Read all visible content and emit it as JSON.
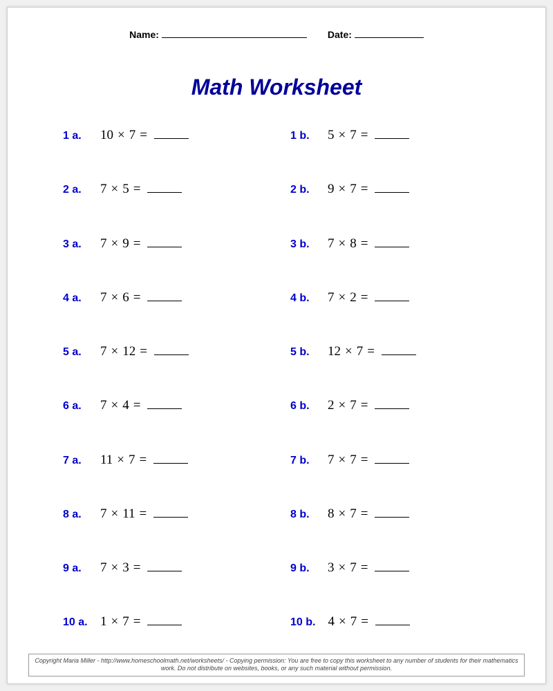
{
  "header": {
    "name_label": "Name:",
    "date_label": "Date:"
  },
  "title": "Math Worksheet",
  "colors": {
    "title_color": "#000099",
    "label_color": "#0000cc",
    "text_color": "#000000",
    "page_bg": "#ffffff"
  },
  "typography": {
    "title_fontsize": 32,
    "label_fontsize": 16,
    "expr_fontsize": 19,
    "footer_fontsize": 9
  },
  "operator": "×",
  "equals": "=",
  "problems": [
    {
      "label": "1 a.",
      "a": 10,
      "b": 7
    },
    {
      "label": "1 b.",
      "a": 5,
      "b": 7
    },
    {
      "label": "2 a.",
      "a": 7,
      "b": 5
    },
    {
      "label": "2 b.",
      "a": 9,
      "b": 7
    },
    {
      "label": "3 a.",
      "a": 7,
      "b": 9
    },
    {
      "label": "3 b.",
      "a": 7,
      "b": 8
    },
    {
      "label": "4 a.",
      "a": 7,
      "b": 6
    },
    {
      "label": "4 b.",
      "a": 7,
      "b": 2
    },
    {
      "label": "5 a.",
      "a": 7,
      "b": 12
    },
    {
      "label": "5 b.",
      "a": 12,
      "b": 7
    },
    {
      "label": "6 a.",
      "a": 7,
      "b": 4
    },
    {
      "label": "6 b.",
      "a": 2,
      "b": 7
    },
    {
      "label": "7 a.",
      "a": 11,
      "b": 7
    },
    {
      "label": "7 b.",
      "a": 7,
      "b": 7
    },
    {
      "label": "8 a.",
      "a": 7,
      "b": 11
    },
    {
      "label": "8 b.",
      "a": 8,
      "b": 7
    },
    {
      "label": "9 a.",
      "a": 7,
      "b": 3
    },
    {
      "label": "9 b.",
      "a": 3,
      "b": 7
    },
    {
      "label": "10 a.",
      "a": 1,
      "b": 7
    },
    {
      "label": "10 b.",
      "a": 4,
      "b": 7
    }
  ],
  "footer": "Copyright Maria Miller - http://www.homeschoolmath.net/worksheets/ - Copying permission: You are free to copy this worksheet to any number of students for their mathematics work. Do not distribute on websites, books, or any such material without permission."
}
